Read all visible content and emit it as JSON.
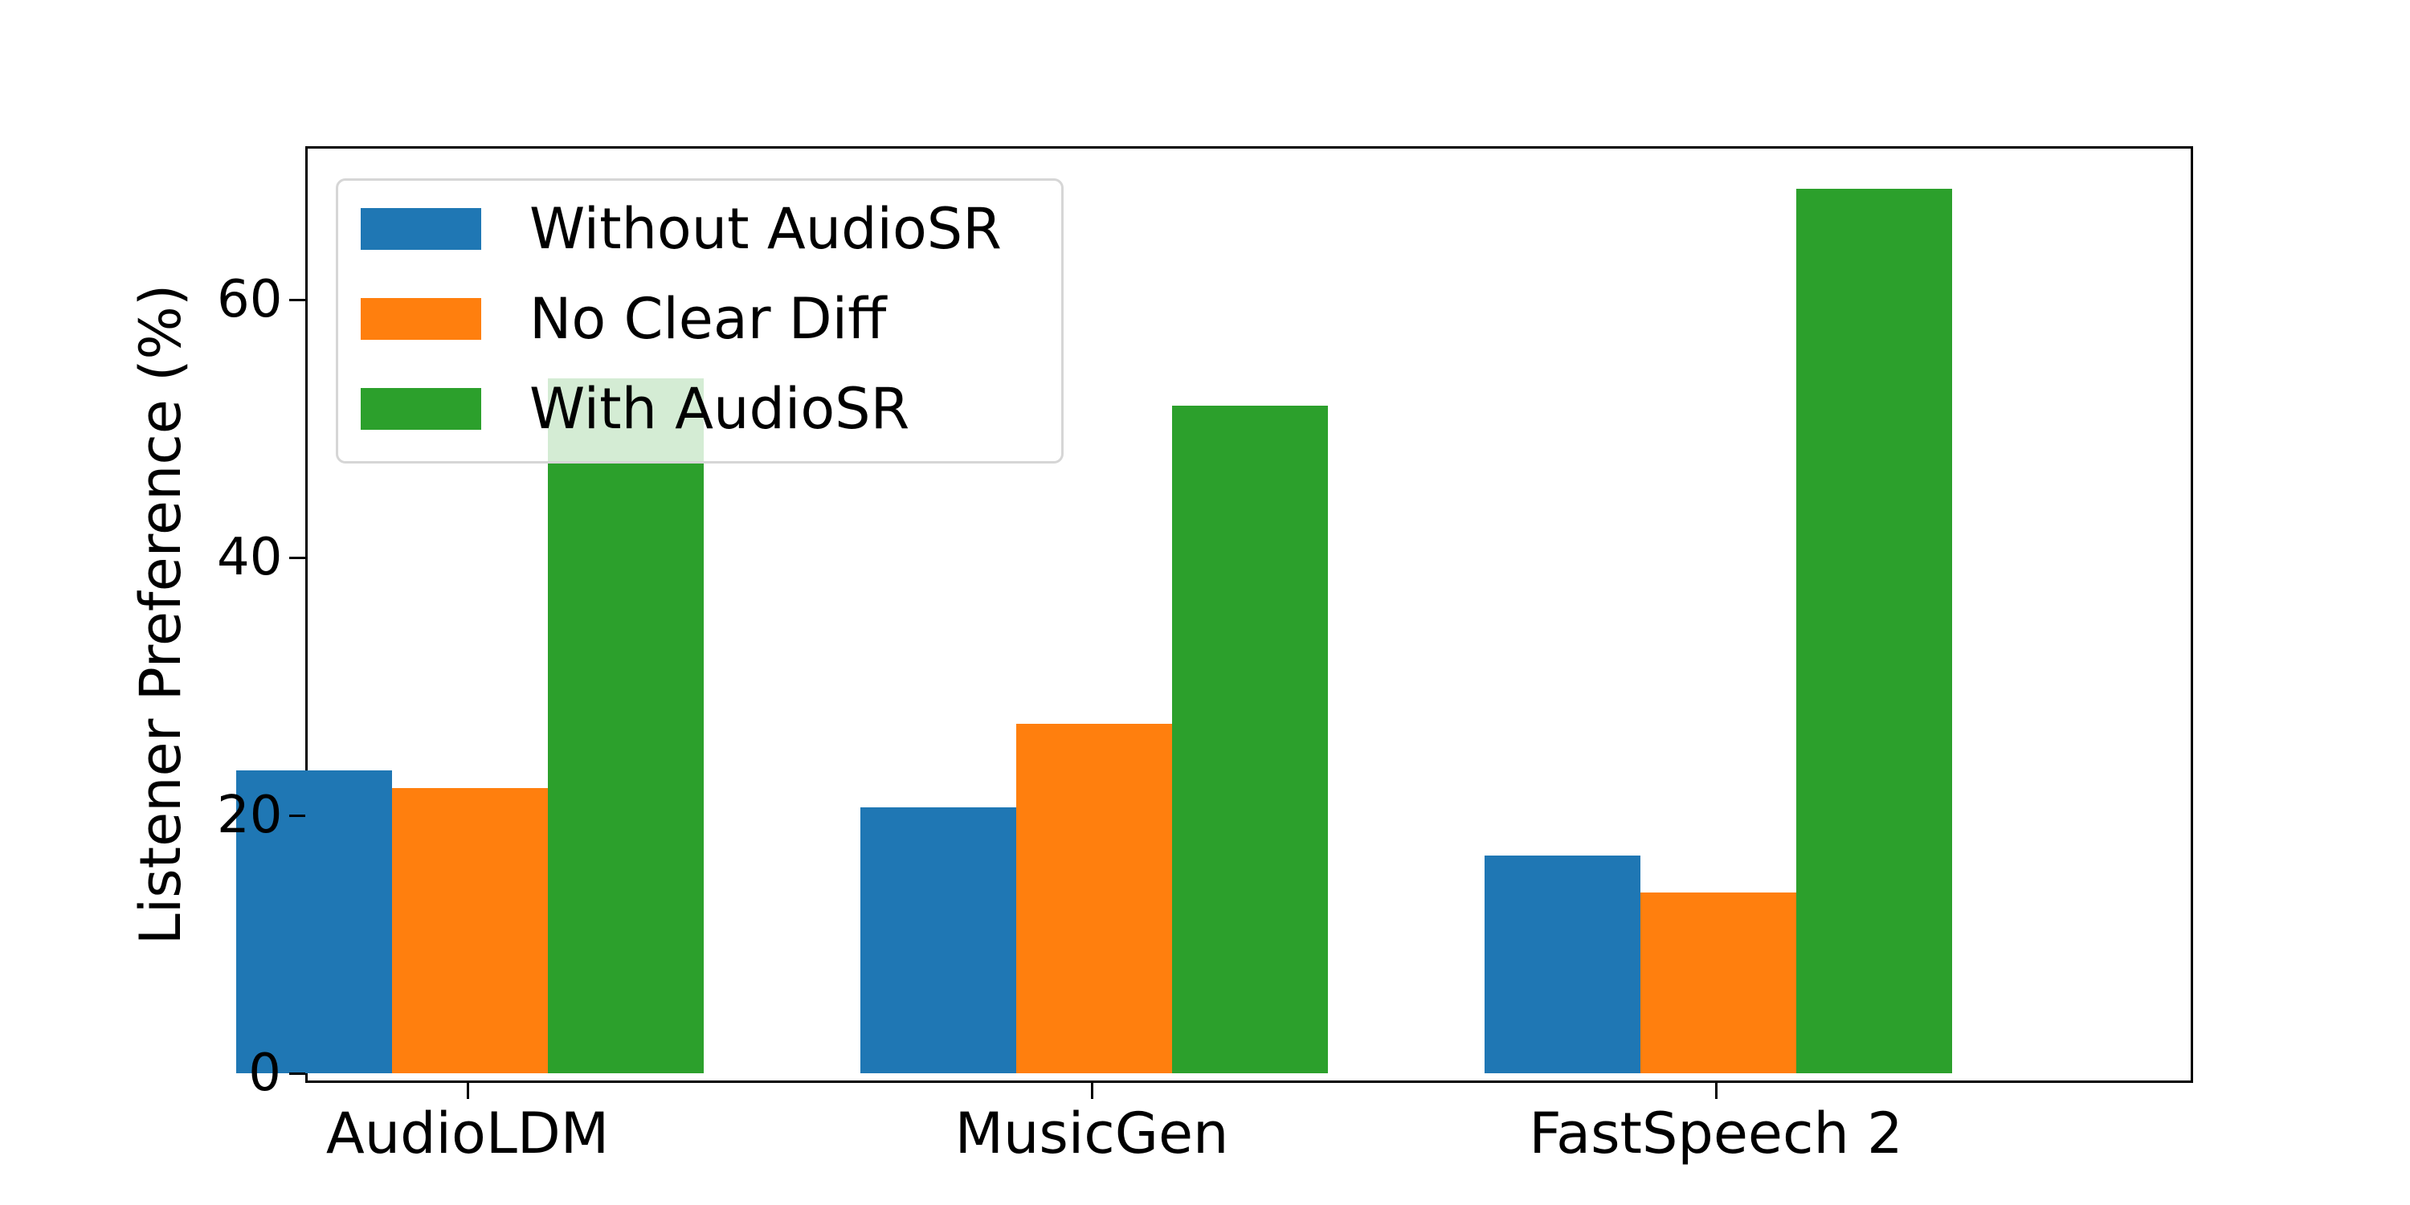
{
  "chart_data": {
    "type": "bar",
    "title": "",
    "xlabel": "",
    "ylabel": "Listener Preference (%)",
    "ylim": [
      0,
      72
    ],
    "yticks": [
      0,
      20,
      40,
      60
    ],
    "grid": false,
    "legend_position": "upper left",
    "categories": [
      "AudioLDM",
      "MusicGen",
      "FastSpeech 2"
    ],
    "series": [
      {
        "name": "Without AudioSR",
        "color": "#1f77b4",
        "values": [
          23.5,
          20.6,
          16.9
        ]
      },
      {
        "name": "No Clear Diff",
        "color": "#ff7f0e",
        "values": [
          22.1,
          27.1,
          14.0
        ]
      },
      {
        "name": "With AudioSR",
        "color": "#2ca02c",
        "values": [
          53.9,
          51.8,
          68.6
        ]
      }
    ]
  }
}
